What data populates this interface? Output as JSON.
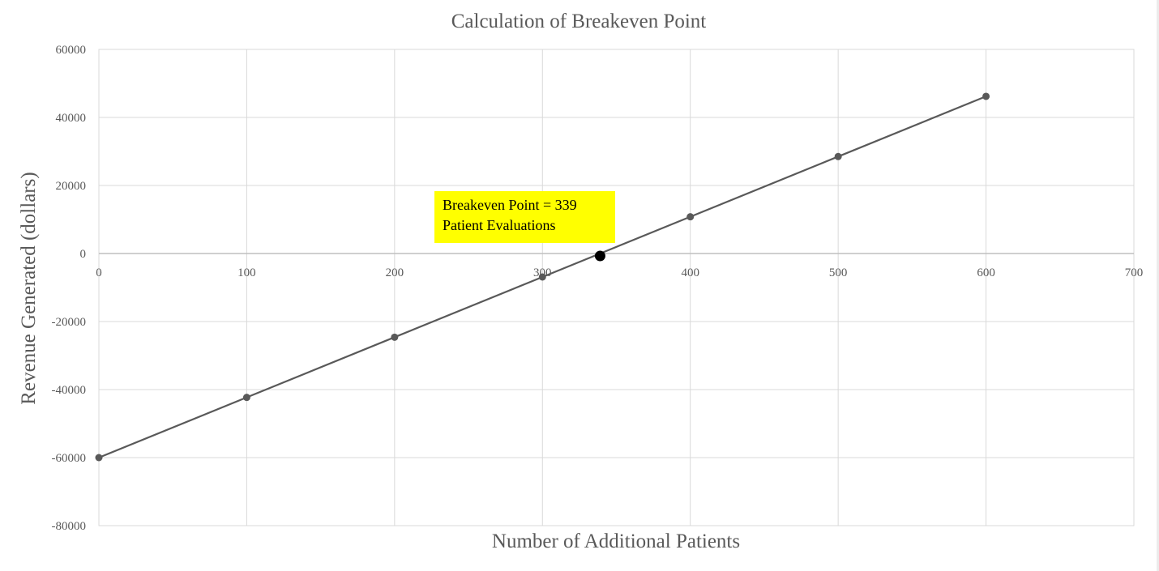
{
  "chart_data": {
    "type": "scatter",
    "title": "Calculation of Breakeven Point",
    "xlabel": "Number of Additional Patients",
    "ylabel": "Revenue Generated (dollars)",
    "xlim": [
      0,
      700
    ],
    "ylim": [
      -80000,
      60000
    ],
    "x_ticks": [
      0,
      100,
      200,
      300,
      400,
      500,
      600,
      700
    ],
    "y_ticks": [
      60000,
      40000,
      20000,
      0,
      -20000,
      -40000,
      -60000,
      -80000
    ],
    "x_tick_labels": [
      "0",
      "100",
      "200",
      "300",
      "400",
      "500",
      "600",
      "700"
    ],
    "y_tick_labels": [
      "60000",
      "40000",
      "20000",
      "0",
      "-20000",
      "-40000",
      "-60000",
      "-80000"
    ],
    "grid": true,
    "series": [
      {
        "x": [
          0,
          100,
          200,
          300,
          400,
          500,
          600
        ],
        "y": [
          -60000,
          -42300,
          -24600,
          -6900,
          10800,
          28500,
          46200
        ],
        "color": "#595959",
        "line": true
      }
    ],
    "breakeven": {
      "x": 339,
      "y": 0,
      "color": "#000000",
      "label_lines": [
        "Breakeven Point = 339",
        "Patient Evaluations"
      ],
      "label_bg": "#ffff00"
    }
  }
}
